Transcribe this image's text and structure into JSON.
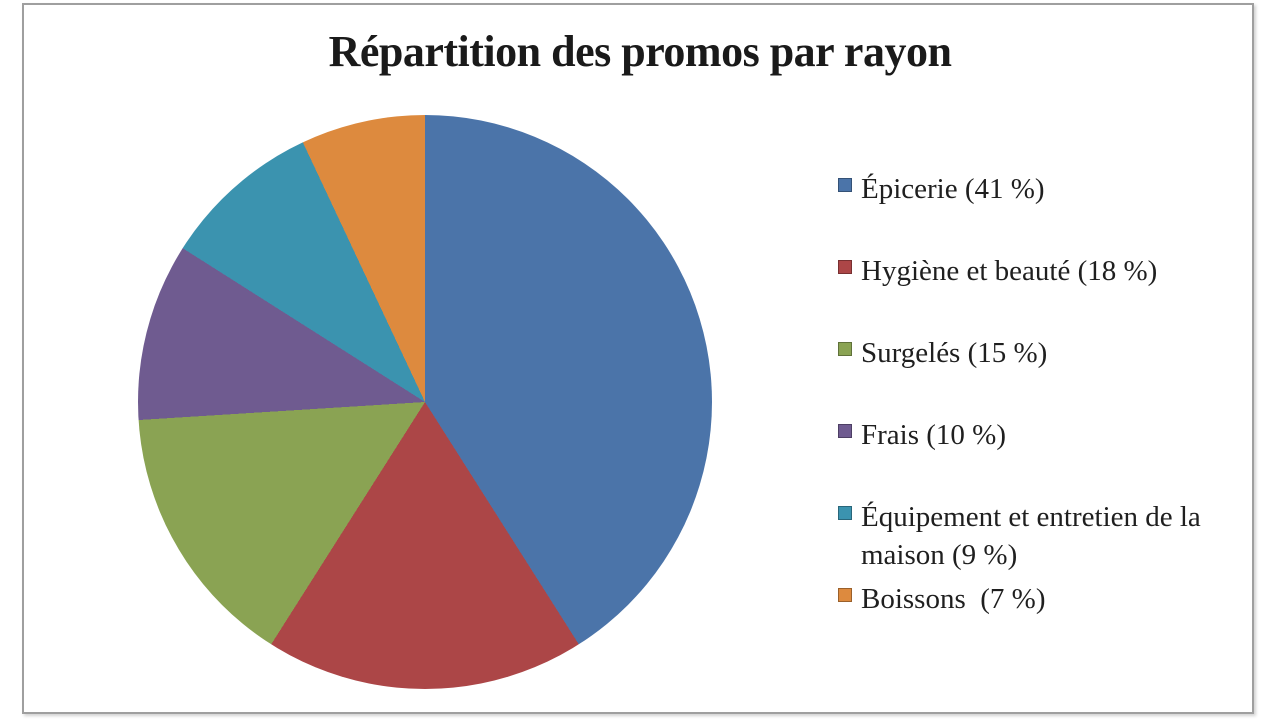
{
  "chart_data": {
    "type": "pie",
    "title": "Répartition des promos par rayon",
    "start_angle_deg": 0,
    "direction": "clockwise",
    "legend_position": "right",
    "grid": false,
    "slices": [
      {
        "label": "Épicerie",
        "value_pct": 41,
        "color": "#4B74A9",
        "legend_label": "Épicerie (41 %)"
      },
      {
        "label": "Hygiène et beauté",
        "value_pct": 18,
        "color": "#AC4647",
        "legend_label": "Hygiène et beauté (18 %)"
      },
      {
        "label": "Surgelés",
        "value_pct": 15,
        "color": "#8AA353",
        "legend_label": "Surgelés (15 %)"
      },
      {
        "label": "Frais",
        "value_pct": 10,
        "color": "#6F5B90",
        "legend_label": "Frais (10 %)"
      },
      {
        "label": "Équipement et entretien de la maison",
        "value_pct": 9,
        "color": "#3B93AF",
        "legend_label": "Équipement et entretien de la maison (9 %)"
      },
      {
        "label": "Boissons",
        "value_pct": 7,
        "color": "#DD8A3E",
        "legend_label": "Boissons  (7 %)"
      }
    ],
    "colors": {
      "frame_border": "#9f9f9f",
      "background": "#ffffff",
      "text": "#1f1f1f"
    },
    "legend_row_spacing_px": 82
  }
}
